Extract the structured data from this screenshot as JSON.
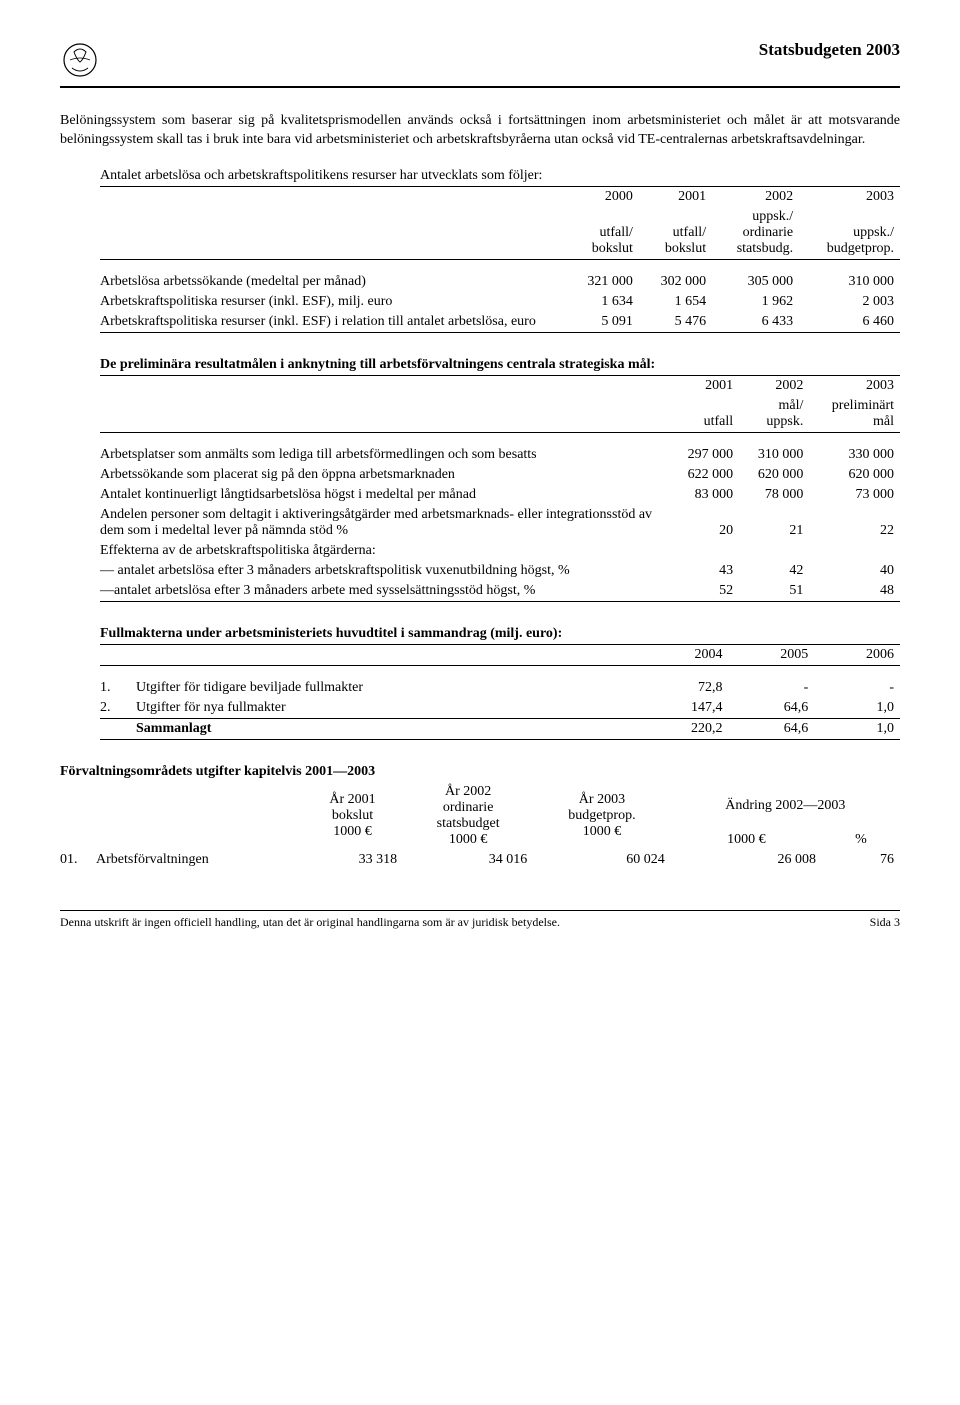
{
  "header": {
    "doc_title": "Statsbudgeten 2003"
  },
  "intro_para": "Belöningssystem som baserar sig på kvalitetsprismodellen används också i fortsättningen inom arbetsministeriet och målet är att motsvarande belöningssystem skall tas i bruk inte bara vid arbetsministeriet och arbetskraftsbyråerna utan också vid TE-centralernas arbetskraftsavdelningar.",
  "table1": {
    "caption": "Antalet arbetslösa och arbetskraftspolitikens resurser har utvecklats som följer:",
    "head_years": [
      "2000",
      "2001",
      "2002",
      "2003"
    ],
    "head_sub": [
      "utfall/\nbokslut",
      "utfall/\nbokslut",
      "uppsk./\nordinarie\nstatsbudg.",
      "uppsk./\nbudgetprop."
    ],
    "rows": [
      {
        "label": "Arbetslösa arbetssökande (medeltal per månad)",
        "c": [
          "321 000",
          "302 000",
          "305 000",
          "310 000"
        ]
      },
      {
        "label": "Arbetskraftspolitiska resurser (inkl. ESF), milj. euro",
        "c": [
          "1 634",
          "1 654",
          "1 962",
          "2 003"
        ]
      },
      {
        "label": "Arbetskraftspolitiska resurser (inkl. ESF) i relation till antalet arbetslösa, euro",
        "c": [
          "5 091",
          "5 476",
          "6 433",
          "6 460"
        ]
      }
    ]
  },
  "table2": {
    "caption": "De preliminära resultatmålen i anknytning till arbetsförvaltningens centrala strategiska mål:",
    "head_years": [
      "2001",
      "2002",
      "2003"
    ],
    "head_sub": [
      "utfall",
      "mål/\nuppsk.",
      "preliminärt\nmål"
    ],
    "rows": [
      {
        "label": "Arbetsplatser som anmälts som lediga till arbetsförmedlingen och som besatts",
        "c": [
          "297 000",
          "310 000",
          "330 000"
        ]
      },
      {
        "label": "Arbetssökande som placerat sig på den öppna arbetsmarknaden",
        "c": [
          "622 000",
          "620 000",
          "620 000"
        ]
      },
      {
        "label": "Antalet kontinuerligt långtidsarbetslösa högst i medeltal per månad",
        "c": [
          "83 000",
          "78 000",
          "73 000"
        ]
      },
      {
        "label": "Andelen personer som deltagit i aktiveringsåtgärder med arbetsmarknads- eller integrationsstöd av dem som i medeltal lever på nämnda stöd %",
        "c": [
          "20",
          "21",
          "22"
        ]
      },
      {
        "label": "Effekterna av de arbetskraftspolitiska åtgärderna:",
        "c": [
          "",
          "",
          ""
        ]
      },
      {
        "label": "— antalet arbetslösa efter 3 månaders arbetskraftspolitisk vuxenutbildning högst, %",
        "c": [
          "43",
          "42",
          "40"
        ]
      },
      {
        "label": "—antalet arbetslösa efter 3 månaders arbete med sysselsättningsstöd högst, %",
        "c": [
          "52",
          "51",
          "48"
        ]
      }
    ]
  },
  "table3": {
    "caption": "Fullmakterna under arbetsministeriets huvudtitel i sammandrag (milj. euro):",
    "head_years": [
      "2004",
      "2005",
      "2006"
    ],
    "rows": [
      {
        "n": "1.",
        "label": "Utgifter för tidigare beviljade fullmakter",
        "c": [
          "72,8",
          "-",
          "-"
        ]
      },
      {
        "n": "2.",
        "label": "Utgifter för nya fullmakter",
        "c": [
          "147,4",
          "64,6",
          "1,0"
        ]
      }
    ],
    "total": {
      "label": "Sammanlagt",
      "c": [
        "220,2",
        "64,6",
        "1,0"
      ]
    }
  },
  "table4": {
    "caption": "Förvaltningsområdets utgifter kapitelvis 2001—2003",
    "head": {
      "c1": "År 2001\nbokslut\n1000 €",
      "c2": "År 2002\nordinarie\nstatsbudget\n1000 €",
      "c3": "År 2003\nbudgetprop.\n1000 €",
      "c4_top": "Ändring 2002—2003",
      "c4a": "1000 €",
      "c4b": "%"
    },
    "rows": [
      {
        "n": "01.",
        "label": "Arbetsförvaltningen",
        "c": [
          "33 318",
          "34 016",
          "60 024",
          "26 008",
          "76"
        ]
      }
    ]
  },
  "footer": {
    "left": "Denna utskrift är ingen officiell handling, utan det är original handlingarna som är av juridisk betydelse.",
    "right": "Sida 3"
  }
}
